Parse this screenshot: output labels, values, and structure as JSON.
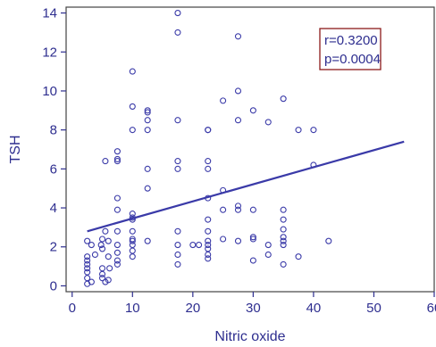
{
  "colors": {
    "marker": "#3a3aa8",
    "axis": "#2e2e8f",
    "frame": "#444444",
    "fit_line": "#3a3aa8",
    "stats_box_border": "#8b1a1a",
    "background": "#ffffff"
  },
  "stats": {
    "r_text": "r=0.3200",
    "p_text": "p=0.0004"
  },
  "chart_data": {
    "type": "scatter",
    "title": "",
    "xlabel": "Nitric oxide",
    "ylabel": "TSH",
    "xlim": [
      -1,
      60
    ],
    "ylim": [
      -0.3,
      14.3
    ],
    "xticks": [
      0,
      10,
      20,
      30,
      40,
      50,
      60
    ],
    "yticks": [
      0,
      2,
      4,
      6,
      8,
      10,
      12,
      14
    ],
    "grid": false,
    "legend": "none",
    "fit_line": {
      "x": [
        2.5,
        55
      ],
      "y": [
        2.8,
        7.4
      ]
    },
    "points": [
      [
        2.5,
        0.1
      ],
      [
        2.5,
        0.4
      ],
      [
        2.5,
        0.7
      ],
      [
        2.5,
        0.9
      ],
      [
        2.5,
        1.1
      ],
      [
        2.5,
        1.3
      ],
      [
        2.5,
        1.5
      ],
      [
        2.5,
        2.3
      ],
      [
        3.2,
        0.2
      ],
      [
        3.2,
        2.1
      ],
      [
        3.8,
        1.6
      ],
      [
        4.8,
        2.1
      ],
      [
        5,
        0.4
      ],
      [
        5,
        0.6
      ],
      [
        5,
        0.9
      ],
      [
        5,
        1.9
      ],
      [
        5,
        2.4
      ],
      [
        5.5,
        0.2
      ],
      [
        5.5,
        6.4
      ],
      [
        5.5,
        2.8
      ],
      [
        6,
        0.3
      ],
      [
        6,
        1.5
      ],
      [
        6,
        2.3
      ],
      [
        6.2,
        0.9
      ],
      [
        7.5,
        1.1
      ],
      [
        7.5,
        1.3
      ],
      [
        7.5,
        1.7
      ],
      [
        7.5,
        2.1
      ],
      [
        7.5,
        2.8
      ],
      [
        7.5,
        3.9
      ],
      [
        7.5,
        4.5
      ],
      [
        7.5,
        6.4
      ],
      [
        7.5,
        6.5
      ],
      [
        7.5,
        6.9
      ],
      [
        10,
        1.5
      ],
      [
        10,
        1.8
      ],
      [
        10,
        2.1
      ],
      [
        10,
        2.3
      ],
      [
        10,
        2.4
      ],
      [
        10,
        2.8
      ],
      [
        10,
        3.4
      ],
      [
        10,
        3.5
      ],
      [
        10,
        3.7
      ],
      [
        10,
        8
      ],
      [
        10,
        9.2
      ],
      [
        10,
        11
      ],
      [
        12.5,
        2.3
      ],
      [
        12.5,
        5
      ],
      [
        12.5,
        6
      ],
      [
        12.5,
        8
      ],
      [
        12.5,
        8.5
      ],
      [
        12.5,
        8.9
      ],
      [
        12.5,
        9
      ],
      [
        17.5,
        1.1
      ],
      [
        17.5,
        1.6
      ],
      [
        17.5,
        2.1
      ],
      [
        17.5,
        2.8
      ],
      [
        17.5,
        6
      ],
      [
        17.5,
        6.4
      ],
      [
        17.5,
        8.5
      ],
      [
        17.5,
        13
      ],
      [
        17.5,
        14
      ],
      [
        20,
        2.1
      ],
      [
        21,
        2.1
      ],
      [
        22.5,
        1.4
      ],
      [
        22.5,
        1.6
      ],
      [
        22.5,
        1.9
      ],
      [
        22.5,
        2.1
      ],
      [
        22.5,
        2.3
      ],
      [
        22.5,
        2.8
      ],
      [
        22.5,
        3.4
      ],
      [
        22.5,
        4.5
      ],
      [
        22.5,
        6
      ],
      [
        22.5,
        6.4
      ],
      [
        22.5,
        8
      ],
      [
        22.5,
        8
      ],
      [
        25,
        2.4
      ],
      [
        25,
        3.9
      ],
      [
        25,
        4.9
      ],
      [
        25,
        9.5
      ],
      [
        27.5,
        2.3
      ],
      [
        27.5,
        3.9
      ],
      [
        27.5,
        4.1
      ],
      [
        27.5,
        8.5
      ],
      [
        27.5,
        10
      ],
      [
        27.5,
        12.8
      ],
      [
        30,
        1.3
      ],
      [
        30,
        2.4
      ],
      [
        30,
        2.5
      ],
      [
        30,
        3.9
      ],
      [
        30,
        9
      ],
      [
        32.5,
        1.6
      ],
      [
        32.5,
        2.1
      ],
      [
        32.5,
        8.4
      ],
      [
        35,
        1.1
      ],
      [
        35,
        2.1
      ],
      [
        35,
        2.3
      ],
      [
        35,
        2.5
      ],
      [
        35,
        2.9
      ],
      [
        35,
        3.4
      ],
      [
        35,
        3.9
      ],
      [
        35,
        9.6
      ],
      [
        37.5,
        1.5
      ],
      [
        37.5,
        8
      ],
      [
        40,
        6.2
      ],
      [
        40,
        8
      ],
      [
        42.5,
        2.3
      ],
      [
        42.5,
        13
      ]
    ]
  }
}
